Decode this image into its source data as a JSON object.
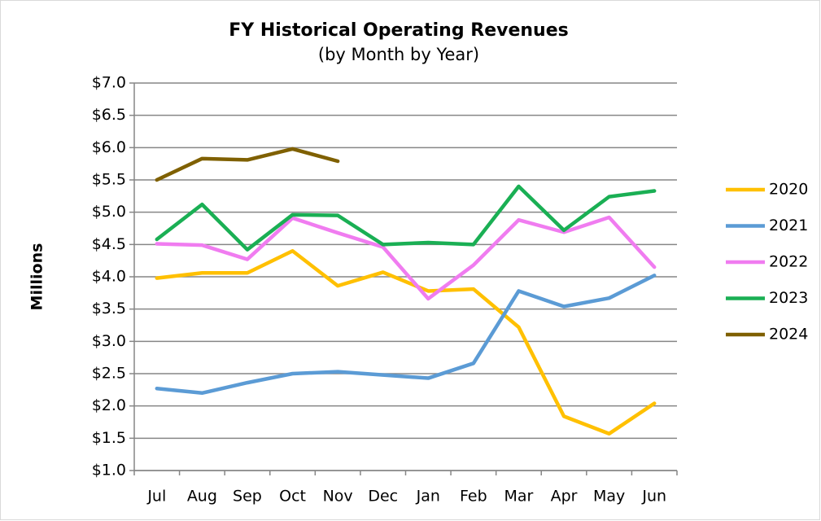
{
  "chart_data": {
    "type": "line",
    "title": "FY Historical Operating Revenues",
    "subtitle": "(by Month by Year)",
    "y_label": "Millions",
    "categories": [
      "Jul",
      "Aug",
      "Sep",
      "Oct",
      "Nov",
      "Dec",
      "Jan",
      "Feb",
      "Mar",
      "Apr",
      "May",
      "Jun"
    ],
    "series": [
      {
        "name": "2020",
        "color": "#ffc000",
        "values": [
          3.98,
          4.06,
          4.06,
          4.4,
          3.86,
          4.07,
          3.78,
          3.81,
          3.22,
          1.84,
          1.57,
          2.04
        ]
      },
      {
        "name": "2021",
        "color": "#5b9bd5",
        "values": [
          2.27,
          2.2,
          2.36,
          2.5,
          2.53,
          2.48,
          2.43,
          2.66,
          3.78,
          3.54,
          3.67,
          4.02
        ]
      },
      {
        "name": "2022",
        "color": "#f07cf0",
        "values": [
          4.51,
          4.49,
          4.27,
          4.91,
          4.68,
          4.46,
          3.66,
          4.18,
          4.88,
          4.69,
          4.92,
          4.15
        ]
      },
      {
        "name": "2023",
        "color": "#1aaf54",
        "values": [
          4.58,
          5.12,
          4.42,
          4.96,
          4.95,
          4.5,
          4.53,
          4.5,
          5.4,
          4.72,
          5.24,
          5.33
        ]
      },
      {
        "name": "2024",
        "color": "#7f6000",
        "values": [
          5.5,
          5.83,
          5.81,
          5.98,
          5.79,
          null,
          null,
          null,
          null,
          null,
          null,
          null
        ]
      }
    ],
    "ylim": [
      1.0,
      7.0
    ],
    "yticks": [
      {
        "value": 1.0,
        "label": "$1.0"
      },
      {
        "value": 1.5,
        "label": "$1.5"
      },
      {
        "value": 2.0,
        "label": "$2.0"
      },
      {
        "value": 2.5,
        "label": "$2.5"
      },
      {
        "value": 3.0,
        "label": "$3.0"
      },
      {
        "value": 3.5,
        "label": "$3.5"
      },
      {
        "value": 4.0,
        "label": "$4.0"
      },
      {
        "value": 4.5,
        "label": "$4.5"
      },
      {
        "value": 5.0,
        "label": "$5.0"
      },
      {
        "value": 5.5,
        "label": "$5.5"
      },
      {
        "value": 6.0,
        "label": "$6.0"
      },
      {
        "value": 6.5,
        "label": "$6.5"
      },
      {
        "value": 7.0,
        "label": "$7.0"
      }
    ],
    "grid": true,
    "legend": "right"
  }
}
